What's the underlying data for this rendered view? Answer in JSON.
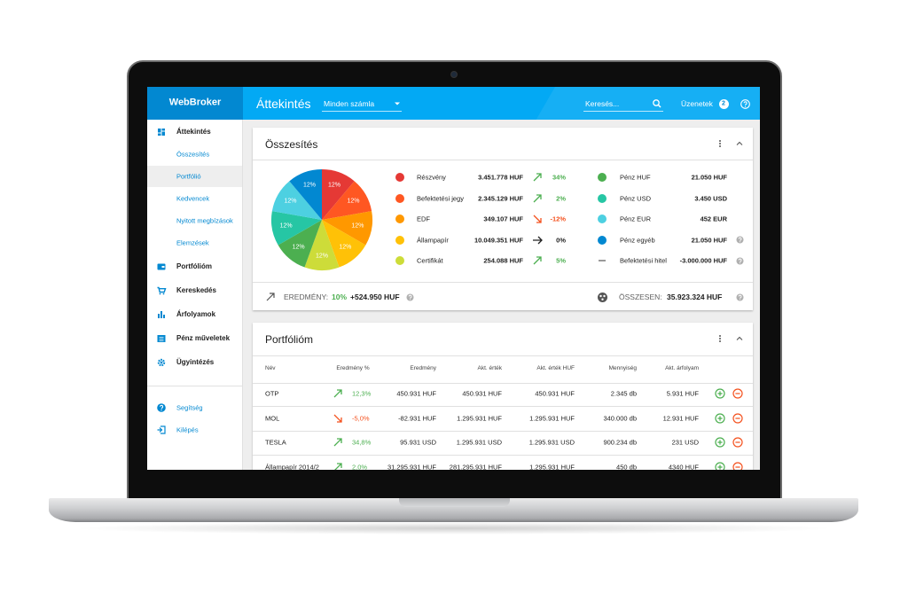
{
  "header": {
    "logo": "WebBroker",
    "title": "Áttekintés",
    "account_filter": "Minden számla",
    "search_placeholder": "Keresés...",
    "messages_label": "Üzenetek",
    "messages_count": 2
  },
  "sidebar": {
    "overview": "Áttekintés",
    "sub_items": [
      "Összesítés",
      "Portfólió",
      "Kedvencek",
      "Nyitott megbízások",
      "Elemzések"
    ],
    "active_sub": 1,
    "items": [
      "Portfólióm",
      "Kereskedés",
      "Árfolyamok",
      "Pénz műveletek",
      "Ügyintézés"
    ],
    "footer_items": [
      "Segítség",
      "Kilépés"
    ]
  },
  "summary": {
    "title": "Összesítés",
    "pie": {
      "values": [
        12,
        12,
        12,
        12,
        12,
        12,
        12,
        12,
        12
      ],
      "value_labels": [
        "12%",
        "12%",
        "12%",
        "12%",
        "12%",
        "12%",
        "12%",
        "12%",
        "12%"
      ],
      "colors": [
        "#e53935",
        "#ff5722",
        "#ff9800",
        "#ffc107",
        "#cddc39",
        "#4caf50",
        "#26c6a4",
        "#4dd0e1",
        "#0288d1"
      ]
    },
    "assets": [
      {
        "name": "Részvény",
        "value": "3.451.778 HUF",
        "change": "34%",
        "trend": "up",
        "color": "#e53935"
      },
      {
        "name": "Befektetési jegy",
        "value": "2.345.129 HUF",
        "change": "2%",
        "trend": "up",
        "color": "#ff5722"
      },
      {
        "name": "EDF",
        "value": "349.107 HUF",
        "change": "-12%",
        "trend": "down",
        "color": "#ff9800"
      },
      {
        "name": "Állampapír",
        "value": "10.049.351 HUF",
        "change": "0%",
        "trend": "flat",
        "color": "#ffc107"
      },
      {
        "name": "Certifikát",
        "value": "254.088 HUF",
        "change": "5%",
        "trend": "up",
        "color": "#cddc39"
      }
    ],
    "cash": [
      {
        "name": "Pénz HUF",
        "value": "21.050 HUF",
        "color": "#4caf50",
        "info": false
      },
      {
        "name": "Pénz USD",
        "value": "3.450 USD",
        "color": "#26c6a4",
        "info": false
      },
      {
        "name": "Pénz EUR",
        "value": "452 EUR",
        "color": "#4dd0e1",
        "info": false
      },
      {
        "name": "Pénz egyéb",
        "value": "21.050 HUF",
        "color": "#0288d1",
        "info": true
      },
      {
        "name": "Befektetési hitel",
        "value": "-3.000.000 HUF",
        "color": null,
        "info": true
      }
    ],
    "result_label": "EREDMÉNY:",
    "result_pct": "10%",
    "result_value": "+524.950 HUF",
    "total_label": "ÖSSZESEN:",
    "total_value": "35.923.324 HUF"
  },
  "portfolio": {
    "title": "Portfólióm",
    "columns": [
      "Név",
      "Eredmény %",
      "Eredmény",
      "Akt. érték",
      "Akt. érték HUF",
      "Mennyiség",
      "Akt. árfolyam"
    ],
    "rows": [
      {
        "trend": "up",
        "cells": [
          "OTP",
          "12,3%",
          "450.931 HUF",
          "450.931 HUF",
          "450.931 HUF",
          "2.345 db",
          "5.931 HUF"
        ]
      },
      {
        "trend": "down",
        "cells": [
          "MOL",
          "-5,0%",
          "-82.931 HUF",
          "1.295.931 HUF",
          "1.295.931 HUF",
          "340.000 db",
          "12.931 HUF"
        ]
      },
      {
        "trend": "up",
        "cells": [
          "TESLA",
          "34,8%",
          "95.931 USD",
          "1.295.931 USD",
          "1.295.931 USD",
          "900.234 db",
          "231 USD"
        ]
      },
      {
        "trend": "up",
        "cells": [
          "Állampapír 2014/2",
          "2,0%",
          "31.295.931 HUF",
          "281.295.931 HUF",
          "1.295.931 HUF",
          "450 db",
          "4340 HUF"
        ]
      }
    ]
  }
}
